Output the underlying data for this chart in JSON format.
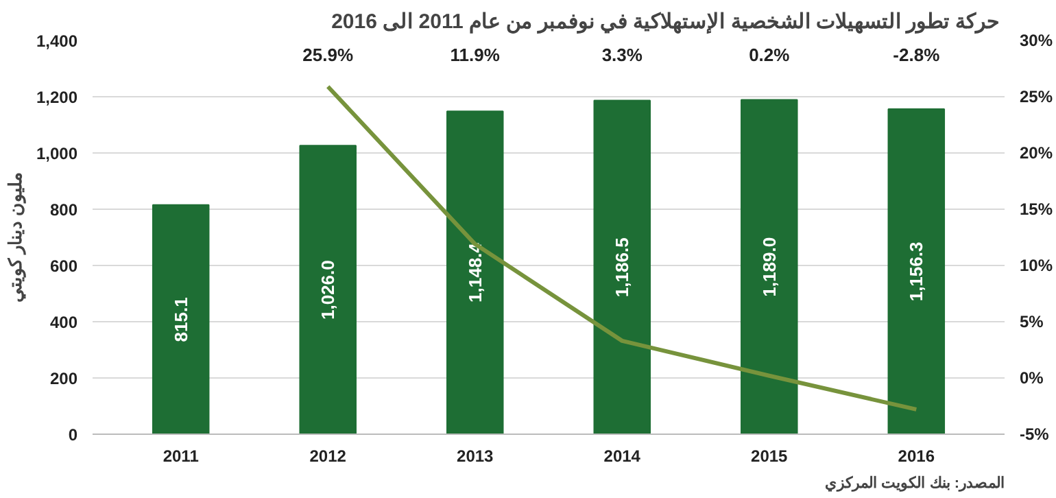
{
  "chart_data": {
    "type": "bar",
    "title": "حركة تطور التسهيلات الشخصية الإستهلاكية  في نوفمبر من عام 2011 الى 2016",
    "ylabel": "مليون دينار كويتي",
    "annotations": [
      "المصدر: بنك الكويت المركزي",
      "25.9%",
      "11.9%",
      "3.3%",
      "0.2%",
      "-2.8%"
    ],
    "categories": [
      "2011",
      "2012",
      "2013",
      "2014",
      "2015",
      "2016"
    ],
    "series": [
      {
        "color": "#1e6e34",
        "values": [
          815.1,
          1026.0,
          1148.4,
          1186.5,
          1189.0,
          1156.3
        ],
        "value_labels": [
          "815.1",
          "1,026.0",
          "1,148.4",
          "1,186.5",
          "1,189.0",
          "1,156.3"
        ]
      },
      {
        "type": "line",
        "axis": "y2",
        "color": "#77933c",
        "values": [
          null,
          25.9,
          11.9,
          3.3,
          0.2,
          -2.8
        ]
      }
    ],
    "ylim": [
      0,
      1400
    ],
    "yticks": [
      0,
      200,
      400,
      600,
      800,
      {
        "value": 1000,
        "label": "1,000"
      },
      {
        "value": 1200,
        "label": "1,200"
      },
      {
        "value": 1400,
        "label": "1,400"
      }
    ],
    "y2lim": [
      -5,
      30
    ],
    "y2ticks": [
      {
        "value": -5,
        "label": "-5%"
      },
      {
        "value": 0,
        "label": "0%"
      },
      {
        "value": 5,
        "label": "5%"
      },
      {
        "value": 10,
        "label": "10%"
      },
      {
        "value": 15,
        "label": "15%"
      },
      {
        "value": 20,
        "label": "20%"
      },
      {
        "value": 25,
        "label": "25%"
      },
      {
        "value": 30,
        "label": "30%"
      }
    ],
    "grid": "y"
  }
}
